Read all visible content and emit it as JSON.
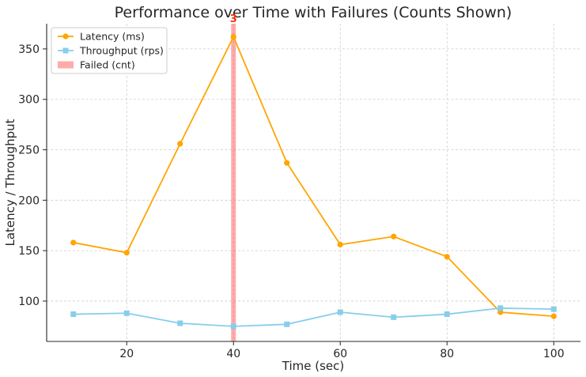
{
  "chart_data": {
    "type": "line",
    "title": "Performance over Time with Failures (Counts Shown)",
    "xlabel": "Time (sec)",
    "ylabel": "Latency / Throughput",
    "x": [
      10,
      20,
      30,
      40,
      50,
      60,
      70,
      80,
      90,
      100
    ],
    "xlim": [
      5,
      105
    ],
    "ylim": [
      60,
      375
    ],
    "xticks": [
      20,
      40,
      60,
      80,
      100
    ],
    "yticks": [
      100,
      150,
      200,
      250,
      300,
      350
    ],
    "grid": true,
    "legend_position": "top-left",
    "series": [
      {
        "name": "Latency (ms)",
        "color": "#FFA500",
        "marker": "circle",
        "values": [
          158,
          148,
          256,
          362,
          237,
          156,
          164,
          144,
          89,
          85
        ]
      },
      {
        "name": "Throughput (rps)",
        "color": "#87CEEB",
        "marker": "square",
        "values": [
          87,
          88,
          78,
          75,
          77,
          89,
          84,
          87,
          93,
          92
        ]
      }
    ],
    "failures": {
      "name": "Failed (cnt)",
      "color": "#FF6666",
      "points": [
        {
          "x": 40,
          "count": 3
        }
      ]
    }
  }
}
